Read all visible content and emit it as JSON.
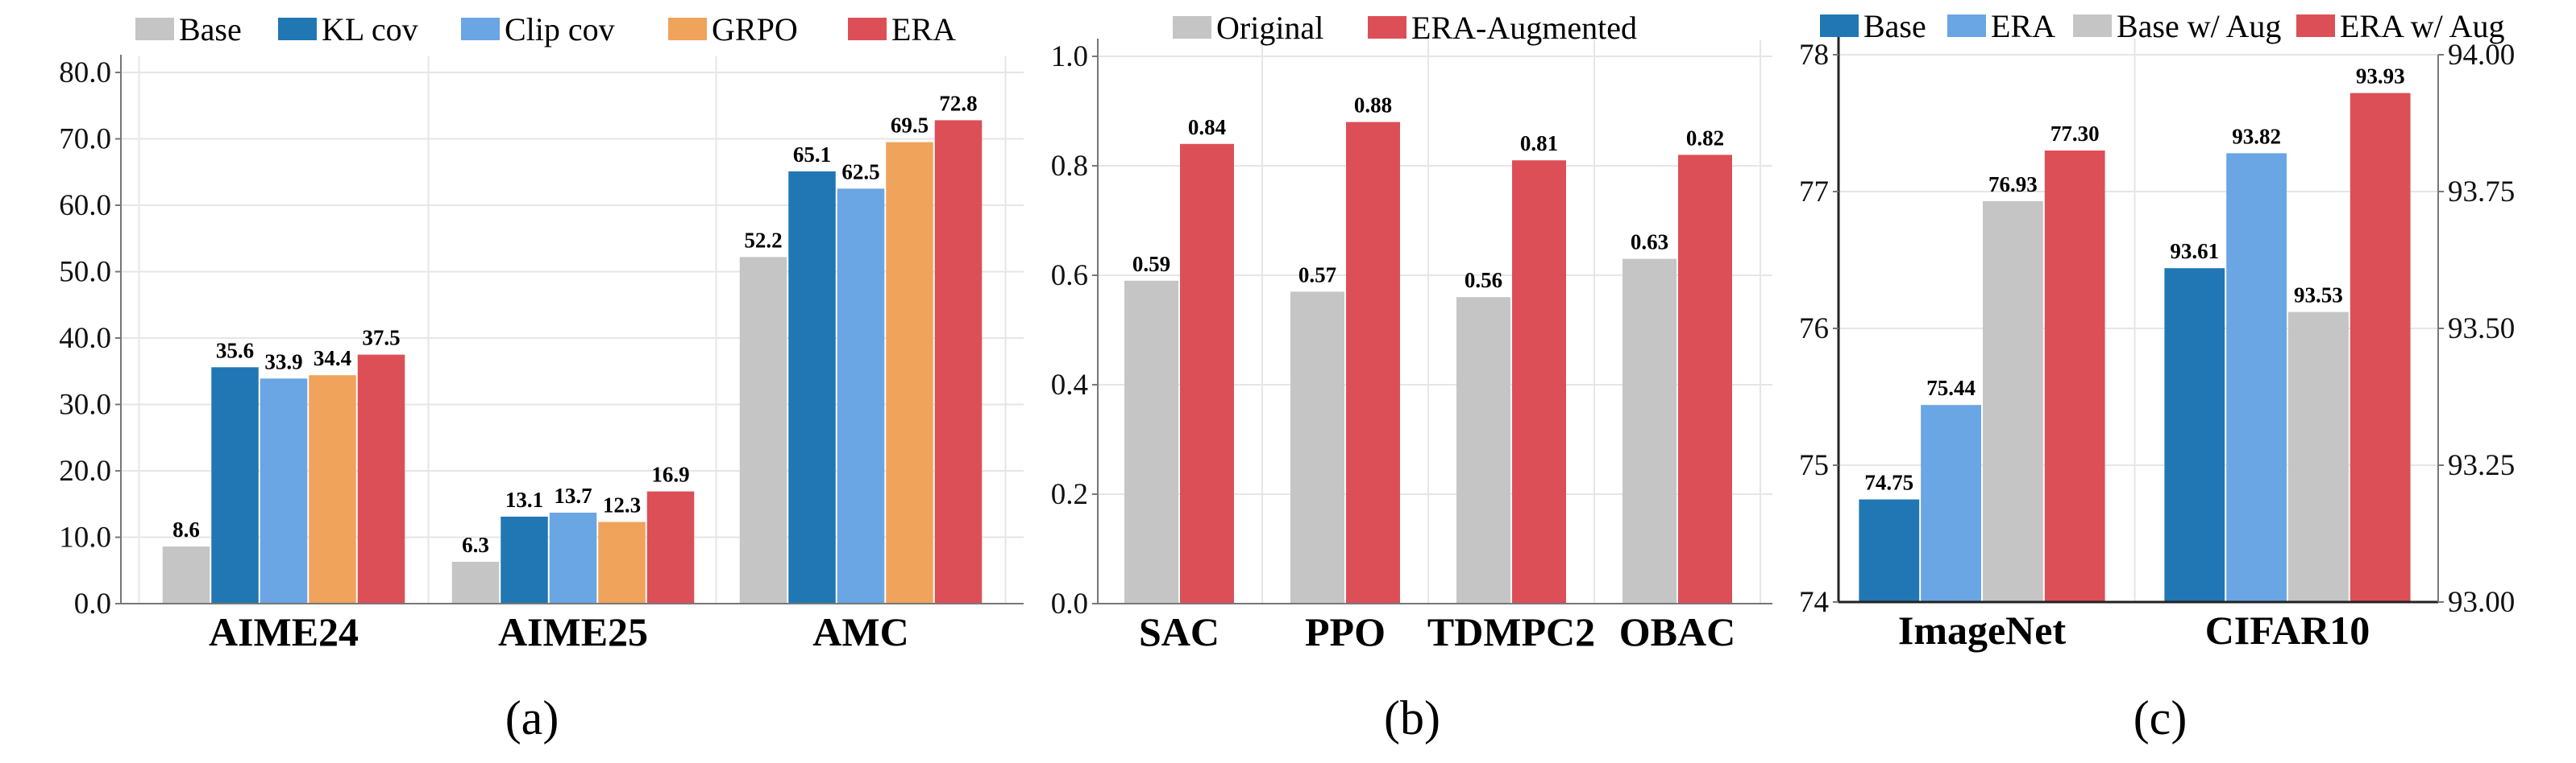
{
  "figure": {
    "captions": [
      "(a)",
      "(b)",
      "(c)"
    ]
  },
  "chart_data": [
    {
      "id": "a",
      "type": "bar",
      "title": "",
      "xlabel": "",
      "ylabel": "",
      "categories": [
        "AIME24",
        "AIME25",
        "AMC"
      ],
      "series": [
        {
          "name": "Base",
          "color": "#c5c5c5",
          "values": [
            8.6,
            6.3,
            52.2
          ]
        },
        {
          "name": "KL cov",
          "color": "#2177b4",
          "values": [
            35.6,
            13.1,
            65.1
          ]
        },
        {
          "name": "Clip cov",
          "color": "#6aa5e4",
          "values": [
            33.9,
            13.7,
            62.5
          ]
        },
        {
          "name": "GRPO",
          "color": "#f0a35a",
          "values": [
            34.4,
            12.3,
            69.5
          ]
        },
        {
          "name": "ERA",
          "color": "#dd4f57",
          "values": [
            37.5,
            16.9,
            72.8
          ]
        }
      ],
      "value_labels": [
        [
          "8.6",
          "6.3",
          "52.2"
        ],
        [
          "35.6",
          "13.1",
          "65.1"
        ],
        [
          "33.9",
          "13.7",
          "62.5"
        ],
        [
          "34.4",
          "12.3",
          "69.5"
        ],
        [
          "37.5",
          "16.9",
          "72.8"
        ]
      ],
      "ylim": [
        0,
        80
      ],
      "yticks": [
        0,
        10,
        20,
        30,
        40,
        50,
        60,
        70,
        80
      ],
      "ytick_labels": [
        "0.0",
        "10.0",
        "20.0",
        "30.0",
        "40.0",
        "50.0",
        "60.0",
        "70.0",
        "80.0"
      ],
      "grid": true,
      "legend": "top"
    },
    {
      "id": "b",
      "type": "bar",
      "title": "",
      "xlabel": "",
      "ylabel": "",
      "categories": [
        "SAC",
        "PPO",
        "TDMPC2",
        "OBAC"
      ],
      "series": [
        {
          "name": "Original",
          "color": "#c5c5c5",
          "values": [
            0.59,
            0.57,
            0.56,
            0.63
          ]
        },
        {
          "name": "ERA-Augmented",
          "color": "#dd4f57",
          "values": [
            0.84,
            0.88,
            0.81,
            0.82
          ]
        }
      ],
      "value_labels": [
        [
          "0.59",
          "0.57",
          "0.56",
          "0.63"
        ],
        [
          "0.84",
          "0.88",
          "0.81",
          "0.82"
        ]
      ],
      "ylim": [
        0,
        1.0
      ],
      "yticks": [
        0,
        0.2,
        0.4,
        0.6,
        0.8,
        1.0
      ],
      "ytick_labels": [
        "0.0",
        "0.2",
        "0.4",
        "0.6",
        "0.8",
        "1.0"
      ],
      "grid": true,
      "legend": "top"
    },
    {
      "id": "c",
      "type": "bar",
      "title": "",
      "xlabel": "",
      "ylabel": "",
      "categories": [
        "ImageNet",
        "CIFAR10"
      ],
      "category_axis": [
        "left",
        "right"
      ],
      "series": [
        {
          "name": "Base",
          "color": "#2177b4",
          "values": [
            74.75,
            93.61
          ]
        },
        {
          "name": "ERA",
          "color": "#6aa5e4",
          "values": [
            75.44,
            93.82
          ]
        },
        {
          "name": "Base w/ Aug",
          "color": "#c5c5c5",
          "values": [
            76.93,
            93.53
          ]
        },
        {
          "name": "ERA w/ Aug",
          "color": "#dd4f57",
          "values": [
            77.3,
            93.93
          ]
        }
      ],
      "value_labels": [
        [
          "74.75",
          "93.61"
        ],
        [
          "75.44",
          "93.82"
        ],
        [
          "76.93",
          "93.53"
        ],
        [
          "77.30",
          "93.93"
        ]
      ],
      "ylim": [
        74,
        78
      ],
      "yticks": [
        74,
        75,
        76,
        77,
        78
      ],
      "ytick_labels": [
        "74",
        "75",
        "76",
        "77",
        "78"
      ],
      "y2lim": [
        93.0,
        94.0
      ],
      "y2ticks": [
        93.0,
        93.25,
        93.5,
        93.75,
        94.0
      ],
      "y2tick_labels": [
        "93.00",
        "93.25",
        "93.50",
        "93.75",
        "94.00"
      ],
      "grid": true,
      "legend": "top"
    }
  ]
}
